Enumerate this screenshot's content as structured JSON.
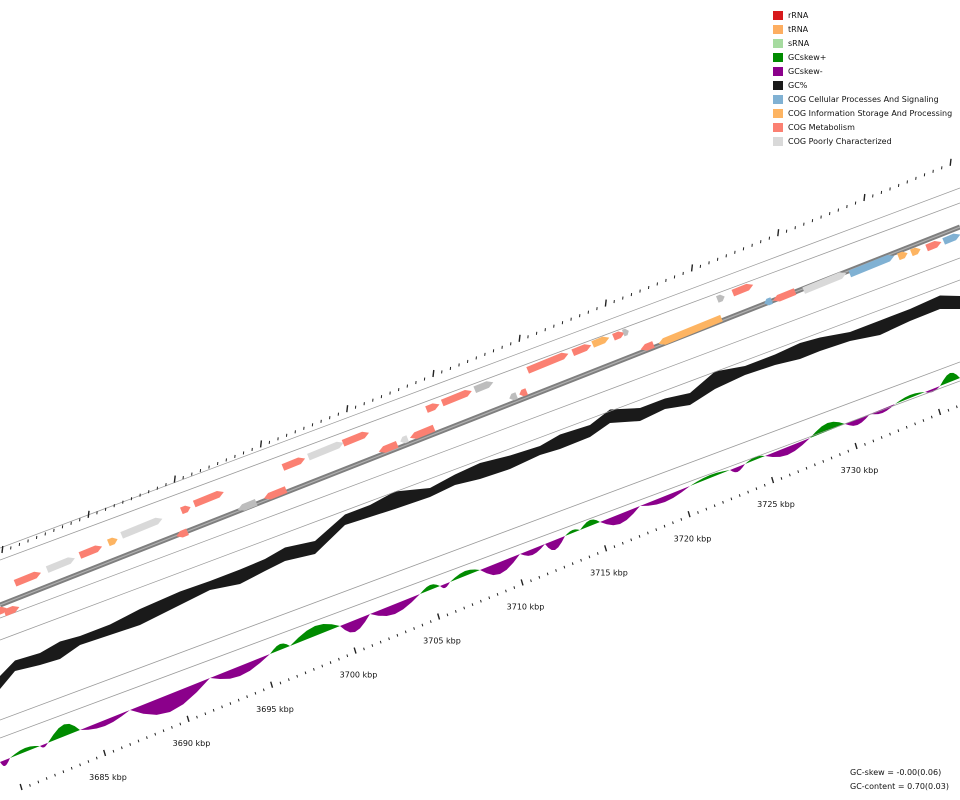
{
  "legend": [
    {
      "label": "rRNA",
      "color": "#d7191c"
    },
    {
      "label": "tRNA",
      "color": "#fdae61"
    },
    {
      "label": "sRNA",
      "color": "#a6dba0"
    },
    {
      "label": "GCskew+",
      "color": "#008b00"
    },
    {
      "label": "GCskew-",
      "color": "#8b008b"
    },
    {
      "label": "GC%",
      "color": "#1a1a1a"
    },
    {
      "label": "COG Cellular Processes And Signaling",
      "color": "#80b1d3"
    },
    {
      "label": "COG Information Storage And Processing",
      "color": "#fdb462"
    },
    {
      "label": "COG Metabolism",
      "color": "#fb8072"
    },
    {
      "label": "COG Poorly Characterized",
      "color": "#d9d9d9"
    }
  ],
  "stats": {
    "gc_skew": "GC-skew = -0.00(0.06)",
    "gc_content": "GC-content = 0.70(0.03)"
  },
  "axis": {
    "tick_labels": [
      "3685 kbp",
      "3690 kbp",
      "3695 kbp",
      "3700 kbp",
      "3705 kbp",
      "3710 kbp",
      "3715 kbp",
      "3720 kbp",
      "3725 kbp",
      "3730 kbp"
    ]
  },
  "colors": {
    "cog_cellular": "#80b1d3",
    "cog_information": "#fdb462",
    "cog_metabolism": "#fb8072",
    "cog_poor": "#d9d9d9",
    "unassigned": "#bdbdbd",
    "gc_content": "#1a1a1a",
    "gc_skew_pos": "#008b00",
    "gc_skew_neg": "#8b008b",
    "backbone": "#7f7f7f",
    "guide": "#9a9a9a"
  }
}
